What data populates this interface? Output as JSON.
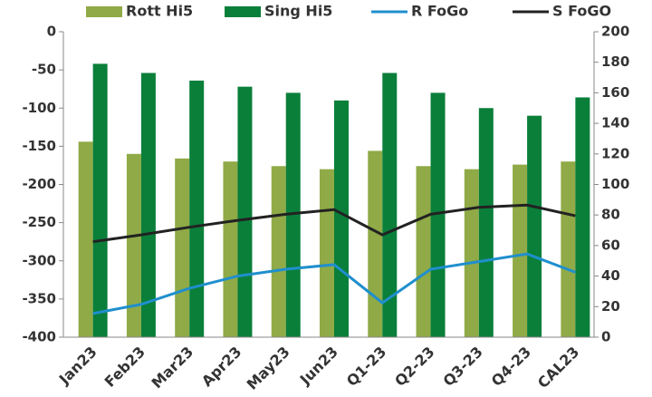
{
  "chart_data": {
    "type": "bar",
    "categories": [
      "Jan23",
      "Feb23",
      "Mar23",
      "Apr23",
      "May23",
      "Jun23",
      "Q1-23",
      "Q2-23",
      "Q3-23",
      "Q4-23",
      "CAL23"
    ],
    "series": [
      {
        "name": "Rott Hi5",
        "type": "bar",
        "axis": "y2",
        "color": "#8faa46",
        "values": [
          128,
          120,
          117,
          115,
          112,
          110,
          122,
          112,
          110,
          113,
          115
        ]
      },
      {
        "name": "Sing Hi5",
        "type": "bar",
        "axis": "y2",
        "color": "#0a7f3a",
        "values": [
          179,
          173,
          168,
          164,
          160,
          155,
          173,
          160,
          150,
          145,
          157
        ]
      },
      {
        "name": "R FoGo",
        "type": "line",
        "axis": "y",
        "color": "#1f8fce",
        "values": [
          -369,
          -357,
          -336,
          -320,
          -311,
          -305,
          -355,
          -311,
          -301,
          -291,
          -315
        ]
      },
      {
        "name": "S FoGO",
        "type": "line",
        "axis": "y",
        "color": "#222222",
        "values": [
          -275,
          -266,
          -256,
          -247,
          -239,
          -233,
          -266,
          -239,
          -230,
          -227,
          -241
        ]
      }
    ],
    "ylim": [
      -400,
      0
    ],
    "yticks": [
      0,
      -50,
      -100,
      -150,
      -200,
      -250,
      -300,
      -350,
      -400
    ],
    "y2lim": [
      0,
      200
    ],
    "y2ticks": [
      0,
      20,
      40,
      60,
      80,
      100,
      120,
      140,
      160,
      180,
      200
    ]
  }
}
